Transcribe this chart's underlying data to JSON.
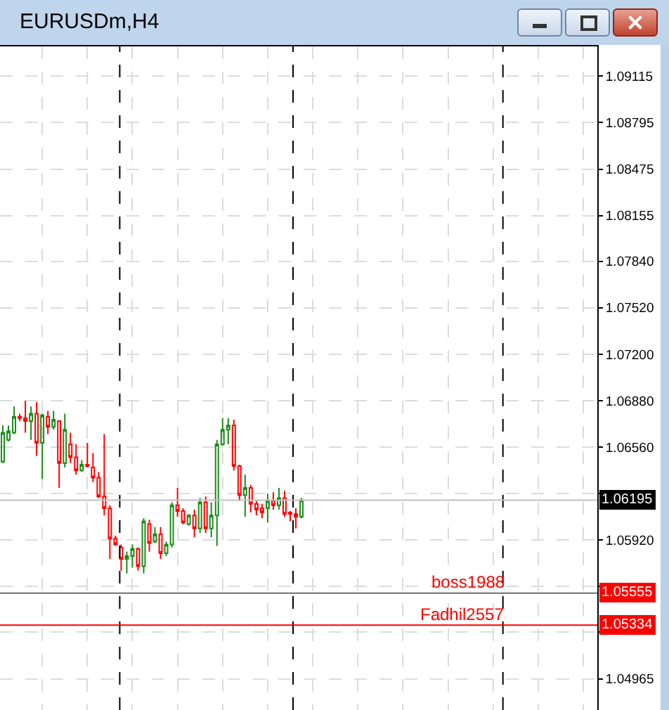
{
  "chart_data": {
    "type": "candlestick",
    "title": "EURUSDm,H4",
    "categories": [
      null,
      null,
      null,
      null,
      null,
      null,
      null,
      null,
      null,
      null,
      null,
      null,
      null,
      null,
      null,
      null,
      null,
      null,
      null,
      null,
      null,
      null,
      null,
      null,
      null,
      null,
      null,
      null,
      null,
      null,
      null,
      null,
      null,
      null,
      null,
      null,
      null,
      null,
      null,
      null,
      null,
      null,
      null,
      null,
      null,
      null,
      null,
      null,
      null,
      null,
      null,
      null,
      null,
      null,
      null,
      null,
      null,
      null,
      null,
      null,
      null,
      null,
      null,
      null,
      null,
      null,
      null,
      null,
      null,
      null,
      null,
      null,
      null,
      null,
      null,
      null,
      null,
      null,
      null,
      null,
      null,
      null,
      null,
      null,
      null,
      null,
      null,
      null,
      null,
      null,
      null,
      null,
      null,
      null,
      null,
      null,
      null,
      null,
      null,
      null,
      null,
      null,
      null,
      null,
      null,
      null
    ],
    "ohlc": [
      [
        1.0646,
        1.0671,
        1.0645,
        1.0666
      ],
      [
        1.0661,
        1.0671,
        1.066,
        1.0667
      ],
      [
        1.0666,
        1.0684,
        1.0665,
        1.0677
      ],
      [
        1.0677,
        1.0679,
        1.0674,
        1.0676
      ],
      [
        1.0676,
        1.0688,
        1.0666,
        1.0674
      ],
      [
        1.0674,
        1.0684,
        1.0661,
        1.0679
      ],
      [
        1.0679,
        1.0687,
        1.065,
        1.0659
      ],
      [
        1.0659,
        1.0679,
        1.0634,
        1.0678
      ],
      [
        1.0677,
        1.0681,
        1.0665,
        1.067
      ],
      [
        1.067,
        1.0681,
        1.0668,
        1.0675
      ],
      [
        1.0674,
        1.0674,
        1.0628,
        1.0645
      ],
      [
        1.0645,
        1.0679,
        1.0642,
        1.0668
      ],
      [
        1.0658,
        1.0666,
        1.0645,
        1.0649
      ],
      [
        1.0649,
        1.0658,
        1.0637,
        1.064
      ],
      [
        1.064,
        1.0647,
        1.0639,
        1.0644
      ],
      [
        1.0644,
        1.0659,
        1.0642,
        1.0643
      ],
      [
        1.0642,
        1.0652,
        1.0632,
        1.0635
      ],
      [
        1.0635,
        1.0639,
        1.0621,
        1.0622
      ],
      [
        1.0622,
        1.0665,
        1.0609,
        1.0614
      ],
      [
        1.0614,
        1.0616,
        1.0579,
        1.0593
      ],
      [
        1.0593,
        1.0595,
        1.0588,
        1.0589
      ],
      [
        1.0587,
        1.0589,
        1.0571,
        1.0579
      ],
      [
        1.0579,
        1.0584,
        1.0569,
        1.0581
      ],
      [
        1.0581,
        1.0589,
        1.0573,
        1.0586
      ],
      [
        1.0586,
        1.0587,
        1.0571,
        1.0574
      ],
      [
        1.0574,
        1.0607,
        1.0569,
        1.0605
      ],
      [
        1.0603,
        1.0606,
        1.0584,
        1.059
      ],
      [
        1.0591,
        1.0601,
        1.059,
        1.0596
      ],
      [
        1.0596,
        1.0601,
        1.0579,
        1.0583
      ],
      [
        1.0583,
        1.0591,
        1.0581,
        1.0589
      ],
      [
        1.0589,
        1.0618,
        1.0587,
        1.0616
      ],
      [
        1.0616,
        1.0628,
        1.0608,
        1.0612
      ],
      [
        1.0612,
        1.0614,
        1.0603,
        1.0604
      ],
      [
        1.0603,
        1.061,
        1.0602,
        1.0609
      ],
      [
        1.0609,
        1.0613,
        1.0594,
        1.06
      ],
      [
        1.06,
        1.0621,
        1.0597,
        1.0618
      ],
      [
        1.0618,
        1.0622,
        1.0597,
        1.06
      ],
      [
        1.06,
        1.0618,
        1.0594,
        1.0609
      ],
      [
        1.0609,
        1.0661,
        1.0588,
        1.0658
      ],
      [
        1.0658,
        1.0676,
        1.0657,
        1.0668
      ],
      [
        1.0668,
        1.0676,
        1.0658,
        1.0671
      ],
      [
        1.0671,
        1.0675,
        1.064,
        1.0643
      ],
      [
        1.0643,
        1.0644,
        1.0619,
        1.0623
      ],
      [
        1.0623,
        1.0637,
        1.0608,
        1.0628
      ],
      [
        1.0628,
        1.063,
        1.0611,
        1.0617
      ],
      [
        1.0617,
        1.0619,
        1.0609,
        1.0613
      ],
      [
        1.0614,
        1.0617,
        1.0607,
        1.0611
      ],
      [
        1.0614,
        1.0624,
        1.0604,
        1.0619
      ],
      [
        1.0619,
        1.0625,
        1.0613,
        1.0616
      ],
      [
        1.0616,
        1.0628,
        1.0613,
        1.0621
      ],
      [
        1.0621,
        1.0626,
        1.0608,
        1.061
      ],
      [
        1.0611,
        1.0612,
        1.0605,
        1.061
      ],
      [
        1.061,
        1.0614,
        1.06,
        1.0608
      ],
      [
        1.0608,
        1.0621,
        1.0607,
        1.06195
      ],
      null,
      null,
      null,
      null,
      null,
      null,
      null,
      null,
      null,
      null,
      null,
      null,
      null,
      null,
      null,
      null,
      null,
      null,
      null,
      null,
      null,
      null,
      null,
      null,
      null,
      null,
      null,
      null,
      null,
      null,
      null,
      null,
      null,
      null,
      null,
      null,
      null,
      null,
      null,
      null,
      null,
      null,
      null,
      null,
      null,
      null,
      null,
      null,
      null,
      null,
      null,
      null
    ],
    "annotations": [
      {
        "text": "1.06195",
        "y": 1.06195
      },
      {
        "text": "1.05555",
        "y": 1.05555
      },
      {
        "text": "1.05334",
        "y": 1.05334
      }
    ],
    "ylim": [
      1.0475,
      1.0932
    ],
    "yticks": [
      1.09115,
      1.08795,
      1.08475,
      1.08155,
      {
        "value": 1.0784,
        "label": "1.07840"
      },
      {
        "value": 1.0752,
        "label": "1.07520"
      },
      {
        "value": 1.072,
        "label": "1.07200"
      },
      {
        "value": 1.0688,
        "label": "1.06880"
      },
      {
        "value": 1.0656,
        "label": "1.06560"
      },
      {
        "value": 1.0624,
        "label": null
      },
      {
        "value": 1.0592,
        "label": "1.05920"
      },
      {
        "value": 1.056,
        "label": null
      },
      {
        "value": 1.05285,
        "label": null
      },
      1.04965
    ],
    "ref_lines": [
      {
        "axis": "y",
        "value": 1.06195,
        "label": null,
        "color": "#c0c0c0"
      },
      {
        "axis": "y",
        "value": 1.05555,
        "label": "boss1988",
        "color": "#707070"
      },
      {
        "axis": "y",
        "value": 1.05334,
        "label": "Fadhil2557",
        "color": "#ff0000"
      }
    ],
    "grid": true,
    "tick_labels": "y"
  }
}
